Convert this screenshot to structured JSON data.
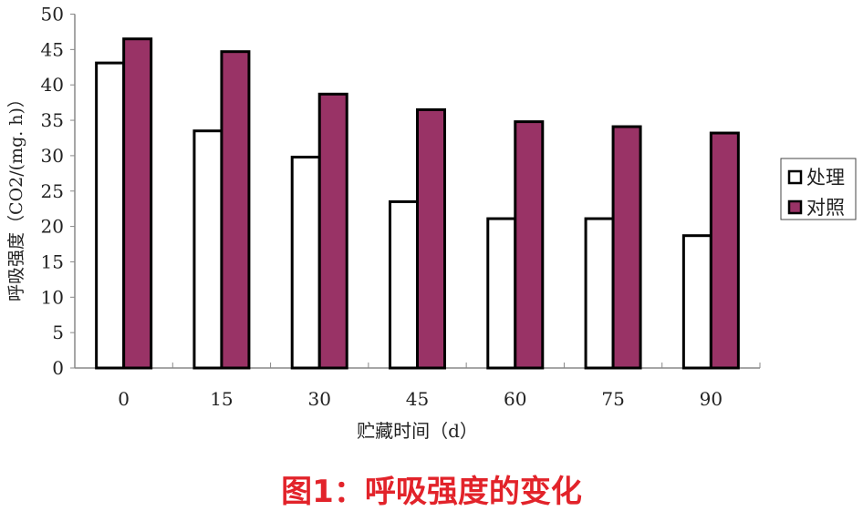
{
  "chart_data": {
    "type": "bar",
    "categories": [
      "0",
      "15",
      "30",
      "45",
      "60",
      "75",
      "90"
    ],
    "series": [
      {
        "name": "处理",
        "values": [
          43.1,
          33.5,
          29.8,
          23.5,
          21.1,
          21.1,
          18.7
        ],
        "color": "#ffffff"
      },
      {
        "name": "对照",
        "values": [
          46.5,
          44.7,
          38.7,
          36.5,
          34.8,
          34.1,
          33.2
        ],
        "color": "#993366"
      }
    ],
    "xlabel": "贮藏时间（d）",
    "ylabel": "呼吸强度（CO2/(mg. h)）",
    "ylim": [
      0,
      50
    ],
    "yticks": [
      "0",
      "5",
      "10",
      "15",
      "20",
      "25",
      "30",
      "35",
      "40",
      "45",
      "50"
    ],
    "grid": false,
    "legend": "right"
  },
  "caption": "图1：呼吸强度的变化"
}
